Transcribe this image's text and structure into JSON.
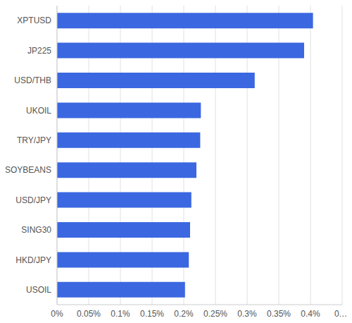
{
  "chart_data": {
    "type": "bar",
    "orientation": "horizontal",
    "categories": [
      "XPTUSD",
      "JP225",
      "USD/THB",
      "UKOIL",
      "TRY/JPY",
      "SOYBEANS",
      "USD/JPY",
      "SING30",
      "HKD/JPY",
      "USOIL"
    ],
    "values": [
      0.404,
      0.39,
      0.312,
      0.227,
      0.226,
      0.22,
      0.212,
      0.21,
      0.208,
      0.202
    ],
    "color": "#3b67e0",
    "xlim": [
      0,
      0.45
    ],
    "xticks": [
      {
        "value": 0,
        "label": "0%"
      },
      {
        "value": 0.05,
        "label": "0.05%"
      },
      {
        "value": 0.1,
        "label": "0.1%"
      },
      {
        "value": 0.15,
        "label": "0.15%"
      },
      {
        "value": 0.2,
        "label": "0.2%"
      },
      {
        "value": 0.25,
        "label": "0.25%"
      },
      {
        "value": 0.3,
        "label": "0.3%"
      },
      {
        "value": 0.35,
        "label": "0.35%"
      },
      {
        "value": 0.4,
        "label": "0.4%"
      },
      {
        "value": 0.45,
        "label": "0.…"
      }
    ],
    "grid": true
  }
}
